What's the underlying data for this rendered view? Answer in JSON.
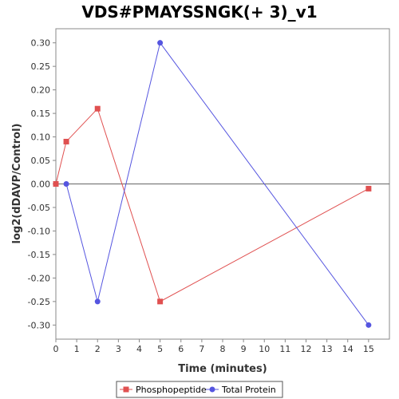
{
  "chart_data": {
    "type": "line",
    "title": "VDS#PMAYSSNGK(+ 3)_v1",
    "xlabel": "Time (minutes)",
    "ylabel": "log2(dDAVP/Control)",
    "xlim": [
      0,
      16
    ],
    "ylim": [
      -0.33,
      0.33
    ],
    "x_ticks": [
      0,
      1,
      2,
      3,
      4,
      5,
      6,
      7,
      8,
      9,
      10,
      11,
      12,
      13,
      14,
      15
    ],
    "y_ticks": [
      -0.3,
      -0.25,
      -0.2,
      -0.15,
      -0.1,
      -0.05,
      0.0,
      0.05,
      0.1,
      0.15,
      0.2,
      0.25,
      0.3
    ],
    "x_tick_labels": [
      "0",
      "1",
      "2",
      "3",
      "4",
      "5",
      "6",
      "7",
      "8",
      "9",
      "10",
      "11",
      "12",
      "13",
      "14",
      "15"
    ],
    "y_tick_labels": [
      "-0.30",
      "-0.25",
      "-0.20",
      "-0.15",
      "-0.10",
      "-0.05",
      "0.00",
      "0.05",
      "0.10",
      "0.15",
      "0.20",
      "0.25",
      "0.30"
    ],
    "grid": false,
    "zero_line": true,
    "legend_position": "bottom",
    "series": [
      {
        "name": "Phosphopeptide",
        "color": "#e05050",
        "marker": "square",
        "x": [
          0,
          0.5,
          2,
          5,
          15
        ],
        "y": [
          0.0,
          0.09,
          0.16,
          -0.25,
          -0.01
        ]
      },
      {
        "name": "Total Protein",
        "color": "#5555e0",
        "marker": "circle",
        "x": [
          0.5,
          2,
          5,
          15
        ],
        "y": [
          0.0,
          -0.25,
          0.3,
          -0.3
        ]
      }
    ]
  }
}
